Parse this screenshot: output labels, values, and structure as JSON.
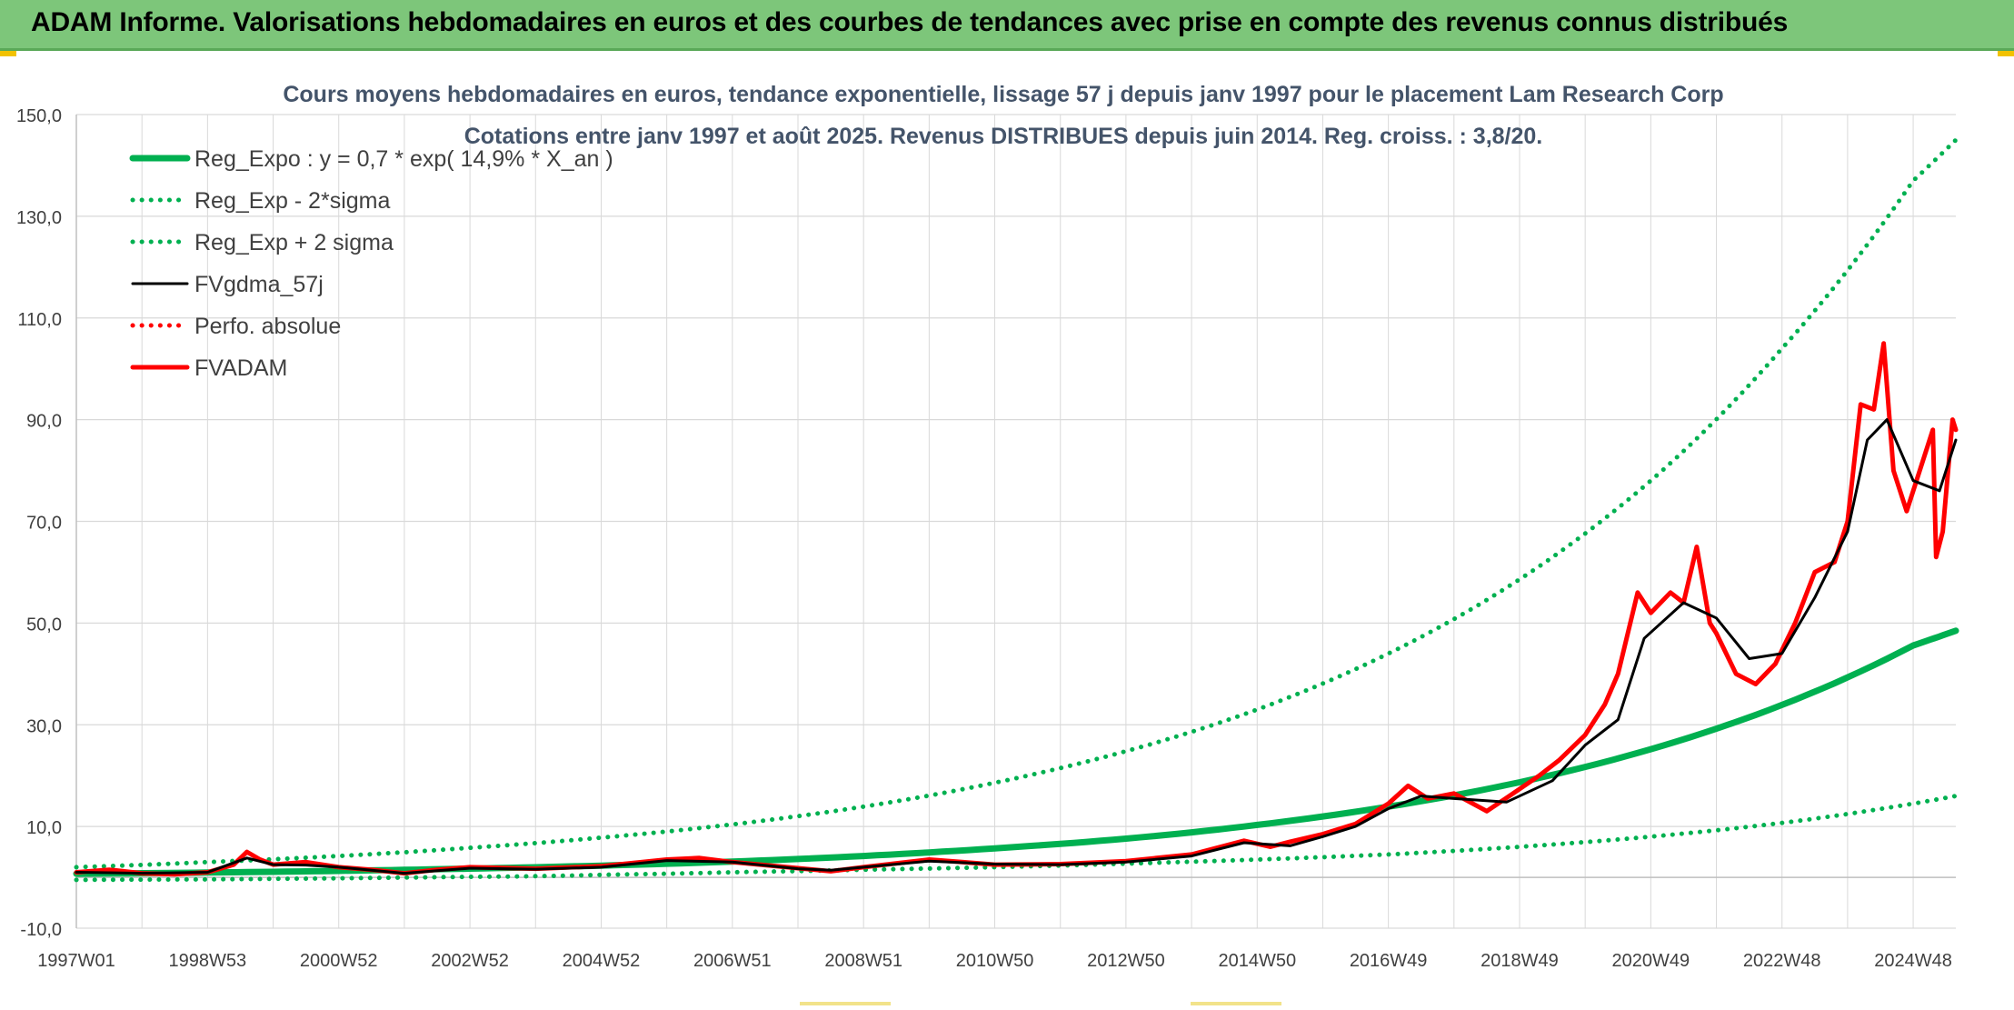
{
  "header": {
    "title": "ADAM Informe. Valorisations hebdomadaires en euros et des courbes de tendances avec prise en compte des revenus connus distribués"
  },
  "colors": {
    "banner": "#7dc67a",
    "reg_expo": "#00b050",
    "fvgdma": "#000000",
    "fvadam": "#ff0000",
    "grid": "#d9d9d9"
  },
  "chart_data": {
    "type": "line",
    "title": "Cours moyens hebdomadaires en euros, tendance exponentielle, lissage 57 j depuis janv 1997 pour le placement Lam Research Corp",
    "subtitle": "Cotations entre janv 1997 et août 2025. Revenus DISTRIBUES depuis juin 2014. Reg. croiss. : 3,8/20.",
    "xlabel": "",
    "ylabel": "",
    "ylim": [
      -10,
      150
    ],
    "y_ticks": [
      "150,0",
      "130,0",
      "110,0",
      "90,0",
      "70,0",
      "50,0",
      "30,0",
      "10,0",
      "-10,0"
    ],
    "x_range": [
      1997.0,
      2025.65
    ],
    "x_ticks": [
      "1997W01",
      "1998W53",
      "2000W52",
      "2002W52",
      "2004W52",
      "2006W51",
      "2008W51",
      "2010W50",
      "2012W50",
      "2014W50",
      "2016W49",
      "2018W49",
      "2020W49",
      "2022W48",
      "2024W48"
    ],
    "x_tick_years": [
      1997.0,
      1999.0,
      2001.0,
      2003.0,
      2005.0,
      2007.0,
      2009.0,
      2011.0,
      2013.0,
      2015.0,
      2017.0,
      2019.0,
      2021.0,
      2023.0,
      2025.0
    ],
    "grid": true,
    "legend_position": "top-left",
    "series": [
      {
        "name": "Reg_Expo : y = 0,7 * exp( 14,9% *  X_an )",
        "style": "solid-thick",
        "color": "#00b050",
        "x": [
          1997.0,
          1999.0,
          2001.0,
          2003.0,
          2005.0,
          2007.0,
          2009.0,
          2011.0,
          2013.0,
          2015.0,
          2017.0,
          2019.0,
          2021.0,
          2023.0,
          2025.0,
          2025.65
        ],
        "y": [
          0.7,
          0.94,
          1.27,
          1.71,
          2.3,
          3.1,
          4.2,
          5.7,
          7.6,
          10.3,
          13.9,
          18.7,
          25.2,
          33.9,
          45.6,
          48.5
        ]
      },
      {
        "name": "Reg_Exp - 2*sigma",
        "style": "dotted",
        "color": "#00b050",
        "x": [
          1997.0,
          1999.0,
          2001.0,
          2003.0,
          2005.0,
          2007.0,
          2009.0,
          2011.0,
          2013.0,
          2015.0,
          2017.0,
          2019.0,
          2021.0,
          2023.0,
          2025.0,
          2025.65
        ],
        "y": [
          -0.5,
          -0.4,
          -0.2,
          0.1,
          0.5,
          1.0,
          1.5,
          2.0,
          2.7,
          3.5,
          4.5,
          6.0,
          8.0,
          10.7,
          14.5,
          16.0
        ]
      },
      {
        "name": "Reg_Exp + 2 sigma",
        "style": "dotted",
        "color": "#00b050",
        "x": [
          1997.0,
          1999.0,
          2001.0,
          2003.0,
          2005.0,
          2007.0,
          2009.0,
          2011.0,
          2013.0,
          2015.0,
          2017.0,
          2019.0,
          2021.0,
          2023.0,
          2025.0,
          2025.65
        ],
        "y": [
          2.0,
          3.0,
          4.2,
          5.8,
          7.8,
          10.4,
          13.9,
          18.6,
          24.8,
          33.0,
          44.0,
          58.6,
          78.0,
          104.0,
          137.0,
          145.0
        ]
      },
      {
        "name": "FVgdma_57j",
        "style": "solid",
        "color": "#000000",
        "x": [
          1997.0,
          1998.0,
          1999.0,
          1999.6,
          2000.0,
          2000.5,
          2001.0,
          2002.0,
          2002.5,
          2003.0,
          2004.0,
          2005.0,
          2006.0,
          2007.0,
          2008.0,
          2008.5,
          2009.0,
          2010.0,
          2011.0,
          2012.0,
          2013.0,
          2014.0,
          2014.8,
          2015.5,
          2016.0,
          2016.5,
          2017.0,
          2017.5,
          2018.0,
          2018.8,
          2019.5,
          2020.0,
          2020.5,
          2020.9,
          2021.5,
          2022.0,
          2022.5,
          2023.0,
          2023.5,
          2024.0,
          2024.3,
          2024.6,
          2025.0,
          2025.4,
          2025.65
        ],
        "y": [
          1.0,
          0.8,
          1.0,
          3.8,
          2.5,
          2.4,
          2.0,
          0.8,
          1.3,
          1.8,
          1.6,
          2.0,
          3.3,
          3.0,
          1.7,
          1.4,
          2.0,
          3.2,
          2.6,
          2.5,
          3.0,
          4.2,
          6.8,
          6.2,
          8.0,
          10.0,
          13.5,
          16.0,
          15.5,
          14.8,
          19.0,
          26.0,
          31.0,
          47.0,
          54.0,
          51.0,
          43.0,
          44.0,
          55.0,
          68.0,
          86.0,
          90.0,
          78.0,
          76.0,
          86.0
        ]
      },
      {
        "name": "Perfo. absolue",
        "style": "dotted",
        "color": "#ff0000",
        "x": [],
        "y": []
      },
      {
        "name": "FVADAM",
        "style": "solid-thick",
        "color": "#ff0000",
        "x": [
          1997.0,
          1997.5,
          1998.0,
          1998.5,
          1999.0,
          1999.4,
          1999.6,
          1999.8,
          2000.0,
          2000.5,
          2001.0,
          2001.5,
          2002.0,
          2002.5,
          2003.0,
          2004.0,
          2005.0,
          2006.0,
          2006.5,
          2007.0,
          2008.0,
          2008.5,
          2009.0,
          2010.0,
          2010.5,
          2011.0,
          2012.0,
          2013.0,
          2014.0,
          2014.8,
          2015.2,
          2015.5,
          2016.0,
          2016.5,
          2017.0,
          2017.3,
          2017.6,
          2018.0,
          2018.5,
          2018.9,
          2019.3,
          2019.6,
          2020.0,
          2020.3,
          2020.5,
          2020.8,
          2021.0,
          2021.3,
          2021.5,
          2021.7,
          2021.9,
          2022.0,
          2022.3,
          2022.6,
          2022.9,
          2023.2,
          2023.5,
          2023.8,
          2024.0,
          2024.2,
          2024.4,
          2024.55,
          2024.7,
          2024.9,
          2025.1,
          2025.3,
          2025.35,
          2025.45,
          2025.6,
          2025.65
        ],
        "y": [
          1.0,
          1.5,
          0.8,
          0.6,
          1.0,
          2.5,
          5.0,
          3.5,
          2.5,
          3.0,
          2.0,
          1.5,
          0.8,
          1.5,
          2.0,
          1.7,
          2.2,
          3.5,
          3.8,
          3.0,
          1.8,
          1.2,
          2.0,
          3.5,
          3.0,
          2.5,
          2.6,
          3.2,
          4.5,
          7.2,
          6.0,
          7.0,
          8.5,
          10.5,
          14.5,
          18.0,
          15.5,
          16.5,
          13.0,
          16.5,
          20.0,
          23.0,
          28.0,
          34.0,
          40.0,
          56.0,
          52.0,
          56.0,
          54.0,
          65.0,
          50.0,
          48.0,
          40.0,
          38.0,
          42.0,
          50.0,
          60.0,
          62.0,
          70.0,
          93.0,
          92.0,
          105.0,
          80.0,
          72.0,
          80.0,
          88.0,
          63.0,
          68.0,
          90.0,
          88.0
        ]
      }
    ],
    "legend": [
      {
        "label": "Reg_Expo : y = 0,7 * exp( 14,9% *  X_an )",
        "style": "solid-thick",
        "color": "#00b050"
      },
      {
        "label": "Reg_Exp - 2*sigma",
        "style": "dotted",
        "color": "#00b050"
      },
      {
        "label": "Reg_Exp + 2 sigma",
        "style": "dotted",
        "color": "#00b050"
      },
      {
        "label": "FVgdma_57j",
        "style": "solid",
        "color": "#000000"
      },
      {
        "label": "Perfo. absolue",
        "style": "dotted",
        "color": "#ff0000"
      },
      {
        "label": "FVADAM",
        "style": "solid-thick",
        "color": "#ff0000"
      }
    ]
  }
}
